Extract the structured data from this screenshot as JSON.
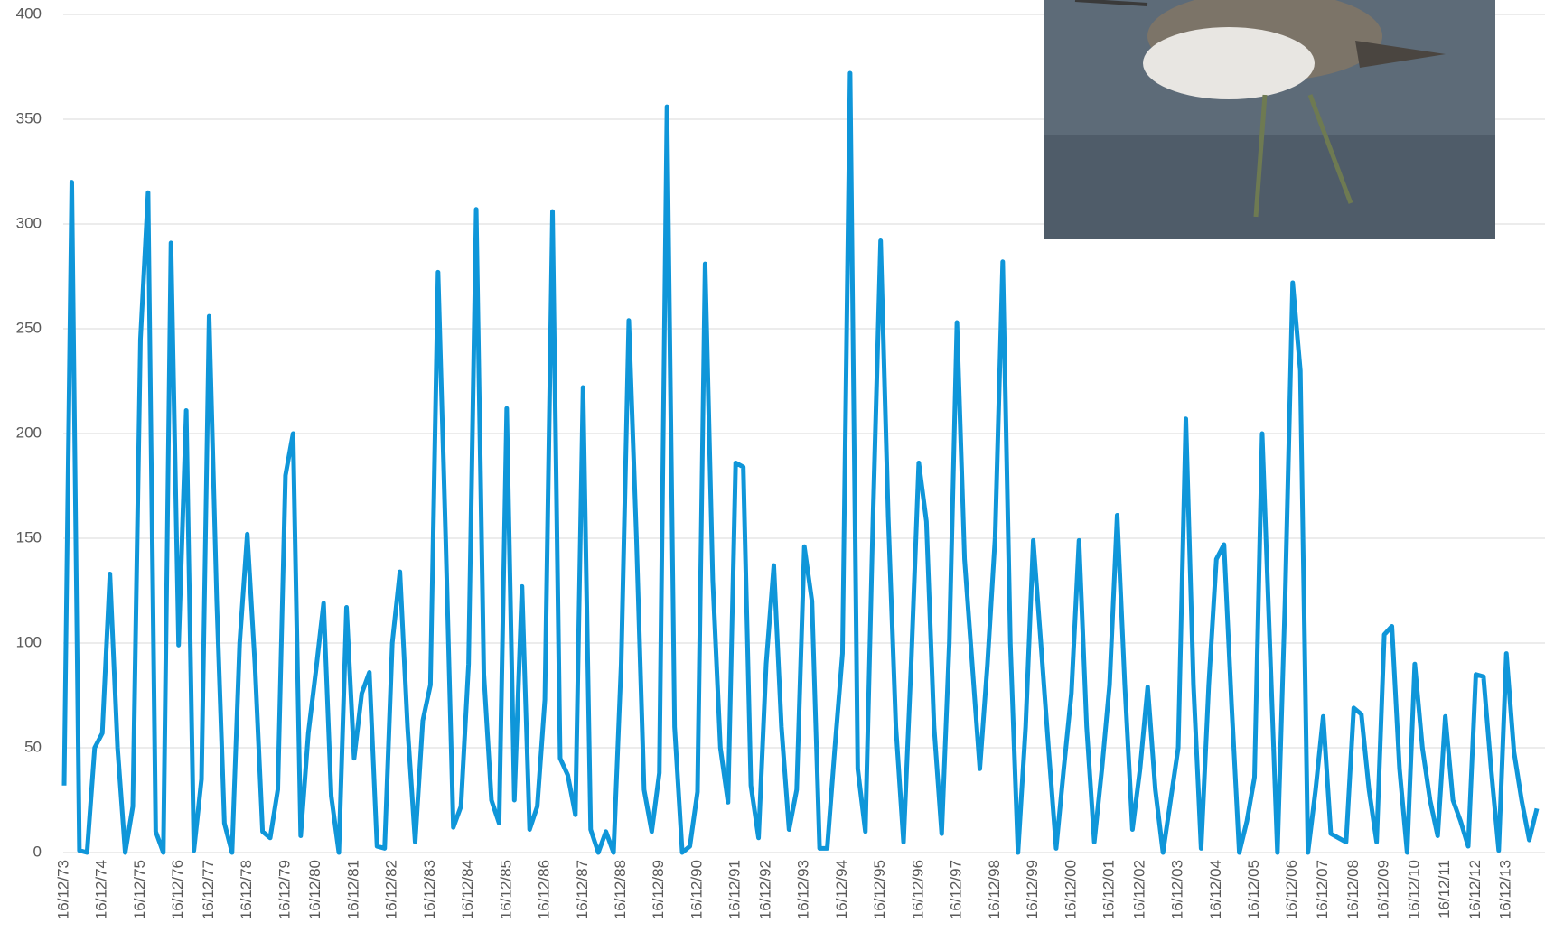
{
  "chart_data": {
    "type": "line",
    "categories": [
      "16/12/73",
      null,
      null,
      null,
      null,
      "16/12/74",
      null,
      null,
      null,
      null,
      "16/12/75",
      null,
      null,
      null,
      null,
      "16/12/76",
      null,
      null,
      null,
      "16/12/77",
      null,
      null,
      null,
      null,
      "16/12/78",
      null,
      null,
      null,
      null,
      "16/12/79",
      null,
      null,
      null,
      "16/12/80",
      null,
      null,
      null,
      null,
      "16/12/81",
      null,
      null,
      null,
      null,
      "16/12/82",
      null,
      null,
      null,
      null,
      "16/12/83",
      null,
      null,
      null,
      null,
      "16/12/84",
      null,
      null,
      null,
      null,
      "16/12/85",
      null,
      null,
      null,
      null,
      "16/12/86",
      null,
      null,
      null,
      null,
      "16/12/87",
      null,
      null,
      null,
      null,
      "16/12/88",
      null,
      null,
      null,
      null,
      "16/12/89",
      null,
      null,
      null,
      null,
      "16/12/90",
      null,
      null,
      null,
      null,
      "16/12/91",
      null,
      null,
      null,
      "16/12/92",
      null,
      null,
      null,
      null,
      "16/12/93",
      null,
      null,
      null,
      null,
      "16/12/94",
      null,
      null,
      null,
      null,
      "16/12/95",
      null,
      null,
      null,
      null,
      "16/12/96",
      null,
      null,
      null,
      null,
      "16/12/97",
      null,
      null,
      null,
      null,
      "16/12/98",
      null,
      null,
      null,
      null,
      "16/12/99",
      null,
      null,
      null,
      null,
      "16/12/00",
      null,
      null,
      null,
      null,
      "16/12/01",
      null,
      null,
      null,
      "16/12/02",
      null,
      null,
      null,
      null,
      "16/12/03",
      null,
      null,
      null,
      null,
      "16/12/04",
      null,
      null,
      null,
      null,
      "16/12/05",
      null,
      null,
      null,
      null,
      "16/12/06",
      null,
      null,
      null,
      "16/12/07",
      null,
      null,
      null,
      "16/12/08",
      null,
      null,
      null,
      "16/12/09",
      null,
      null,
      null,
      "16/12/10",
      null,
      null,
      null,
      "16/12/11",
      null,
      null,
      null,
      "16/12/12",
      null,
      null,
      null,
      "16/12/13",
      null,
      null,
      null,
      null
    ],
    "series": [
      {
        "color": "#0f96d9",
        "values": [
          32,
          320,
          1,
          0,
          50,
          57,
          133,
          50,
          0,
          22,
          245,
          315,
          10,
          0,
          291,
          99,
          211,
          1,
          35,
          256,
          120,
          14,
          0,
          100,
          152,
          90,
          10,
          7,
          30,
          180,
          200,
          8,
          57,
          87,
          119,
          27,
          0,
          117,
          45,
          76,
          86,
          3,
          2,
          100,
          134,
          60,
          5,
          63,
          80,
          277,
          150,
          12,
          22,
          90,
          307,
          85,
          25,
          14,
          212,
          25,
          127,
          11,
          22,
          73,
          306,
          45,
          37,
          18,
          222,
          11,
          0,
          10,
          0,
          90,
          254,
          150,
          30,
          10,
          38,
          356,
          60,
          0,
          3,
          29,
          281,
          130,
          50,
          24,
          186,
          184,
          32,
          7,
          90,
          137,
          60,
          11,
          30,
          146,
          120,
          2,
          2,
          50,
          95,
          372,
          40,
          10,
          160,
          292,
          160,
          60,
          5,
          90,
          186,
          158,
          60,
          9,
          100,
          253,
          140,
          90,
          40,
          90,
          150,
          282,
          100,
          0,
          60,
          149,
          100,
          50,
          2,
          40,
          76,
          149,
          60,
          5,
          40,
          80,
          161,
          80,
          11,
          40,
          79,
          30,
          0,
          25,
          50,
          207,
          80,
          2,
          80,
          140,
          147,
          70,
          0,
          15,
          36,
          200,
          100,
          0,
          120,
          272,
          230,
          0,
          30,
          65,
          9,
          7,
          5,
          69,
          66,
          30,
          5,
          104,
          108,
          40,
          0,
          90,
          50,
          25,
          8,
          65,
          25,
          15,
          3,
          85,
          84,
          40,
          1,
          95,
          48,
          25,
          6,
          21
        ]
      }
    ],
    "ylim": [
      0,
      400
    ],
    "yticks": [
      0,
      50,
      100,
      150,
      200,
      250,
      300,
      350,
      400
    ],
    "grid": true
  }
}
